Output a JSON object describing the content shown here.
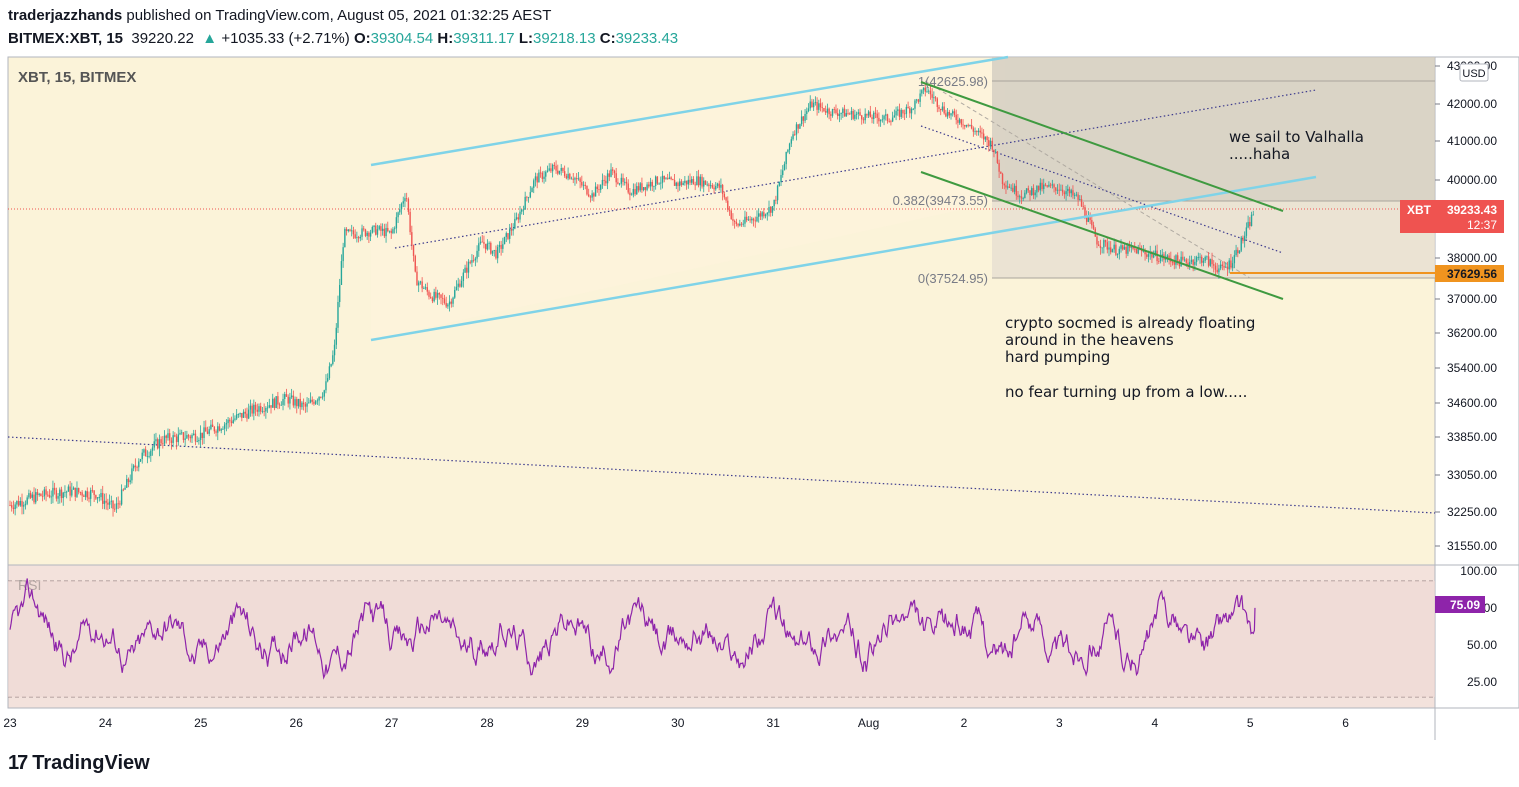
{
  "header": {
    "author": "traderjazzhands",
    "published": "published on TradingView.com, August 05, 2021 01:32:25 AEST",
    "symbol": "BITMEX:XBT, 15",
    "last": "39220.22",
    "change": "+1035.33 (+2.71%)",
    "o_label": "O:",
    "o_value": "39304.54",
    "h_label": "H:",
    "h_value": "39311.17",
    "l_label": "L:",
    "l_value": "39218.13",
    "c_label": "C:",
    "c_value": "39233.43"
  },
  "pane_title": "XBT, 15, BITMEX",
  "currency": "USD",
  "rsi_title": "RSI",
  "price_badge": {
    "symbol": "XBT",
    "value": "39233.43",
    "countdown": "12:37"
  },
  "level_badge": "37629.56",
  "rsi_badge": "75.09",
  "fib_labels": {
    "top": "1(42625.98)",
    "mid": "0.382(39473.55)",
    "bottom": "0(37524.95)"
  },
  "notes": {
    "n1": "we sail to Valhalla",
    "n2": ".....haha",
    "n3": "crypto socmed is already floating",
    "n4": "around in the heavens",
    "n5": "hard pumping",
    "n6": "no fear turning up from a low....."
  },
  "brand": "TradingView",
  "colors": {
    "price_bg": "#fbf3d9",
    "rsi_bg": "#f3e2dc",
    "channel": "#7fd3e8",
    "trend": "#3f9a40",
    "rsi_line": "#8e24aa",
    "up": "#26a69a",
    "down": "#ef5350",
    "price_badge": "#ef5350",
    "level": "#f0941f"
  },
  "chart_data": {
    "type": "candlestick",
    "y_ticks": [
      43000,
      42000,
      41000,
      40000,
      39000,
      38000,
      37000,
      36200,
      35400,
      34600,
      33850,
      33050,
      32250,
      31550
    ],
    "y_tick_labels": [
      "43000.00",
      "42000.00",
      "41000.00",
      "40000.00",
      "39000.00",
      "38000.00",
      "37000.00",
      "36200.00",
      "35400.00",
      "34600.00",
      "33850.00",
      "33050.00",
      "32250.00",
      "31550.00"
    ],
    "x_labels": [
      "23",
      "24",
      "25",
      "26",
      "27",
      "28",
      "29",
      "30",
      "31",
      "Aug",
      "2",
      "3",
      "4",
      "5",
      "6"
    ],
    "rsi_ticks": [
      "100.00",
      "75.00",
      "50.00",
      "25.00"
    ],
    "rsi_levels": [
      70,
      30
    ],
    "price_path": [
      [
        0,
        32400
      ],
      [
        0.3,
        32600
      ],
      [
        0.6,
        32700
      ],
      [
        0.9,
        32650
      ],
      [
        1.1,
        32300
      ],
      [
        1.35,
        33400
      ],
      [
        1.6,
        33800
      ],
      [
        2.0,
        33900
      ],
      [
        2.3,
        34200
      ],
      [
        2.6,
        34500
      ],
      [
        2.9,
        34700
      ],
      [
        3.1,
        34500
      ],
      [
        3.3,
        34900
      ],
      [
        3.4,
        35800
      ],
      [
        3.5,
        38600
      ],
      [
        3.6,
        38600
      ],
      [
        3.85,
        38700
      ],
      [
        4.0,
        38600
      ],
      [
        4.15,
        39700
      ],
      [
        4.25,
        37500
      ],
      [
        4.4,
        37100
      ],
      [
        4.6,
        36900
      ],
      [
        4.8,
        37800
      ],
      [
        4.95,
        38400
      ],
      [
        5.1,
        38100
      ],
      [
        5.3,
        38900
      ],
      [
        5.5,
        40000
      ],
      [
        5.7,
        40300
      ],
      [
        5.9,
        40100
      ],
      [
        6.1,
        39600
      ],
      [
        6.3,
        40200
      ],
      [
        6.5,
        39700
      ],
      [
        6.8,
        40000
      ],
      [
        7.0,
        39900
      ],
      [
        7.2,
        40000
      ],
      [
        7.45,
        39800
      ],
      [
        7.6,
        38800
      ],
      [
        7.8,
        39000
      ],
      [
        8.0,
        39300
      ],
      [
        8.2,
        41200
      ],
      [
        8.4,
        42000
      ],
      [
        8.6,
        41800
      ],
      [
        8.9,
        41700
      ],
      [
        9.2,
        41600
      ],
      [
        9.45,
        41900
      ],
      [
        9.6,
        42400
      ],
      [
        9.8,
        41800
      ],
      [
        10.0,
        41500
      ],
      [
        10.3,
        40900
      ],
      [
        10.4,
        40000
      ],
      [
        10.6,
        39600
      ],
      [
        10.8,
        39800
      ],
      [
        11.0,
        39800
      ],
      [
        11.2,
        39500
      ],
      [
        11.4,
        38400
      ],
      [
        11.6,
        38200
      ],
      [
        11.8,
        38200
      ],
      [
        12.1,
        38000
      ],
      [
        12.3,
        37900
      ],
      [
        12.5,
        38000
      ],
      [
        12.7,
        37700
      ],
      [
        12.8,
        37900
      ],
      [
        12.95,
        38600
      ],
      [
        13.05,
        39233
      ]
    ],
    "rsi_last": 75.09,
    "fib_levels": [
      {
        "ratio": 1,
        "price": 42625.98
      },
      {
        "ratio": 0.382,
        "price": 39473.55
      },
      {
        "ratio": 0,
        "price": 37524.95
      }
    ],
    "last_price": 39233.43,
    "level_line": 37629.56
  }
}
